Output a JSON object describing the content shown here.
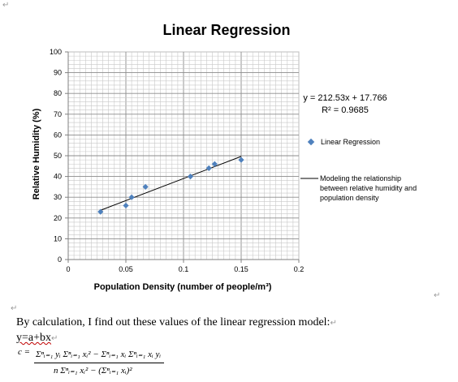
{
  "chart_data": {
    "type": "scatter",
    "title": "Linear Regression",
    "xlabel": "Population Density (number of people/m³)",
    "ylabel": "Relative Humidity (%)",
    "xlim": [
      0,
      0.2
    ],
    "ylim": [
      0,
      100
    ],
    "xticks": [
      "0",
      "0.05",
      "0.1",
      "0.15",
      "0.2"
    ],
    "yticks": [
      "0",
      "10",
      "20",
      "30",
      "40",
      "50",
      "60",
      "70",
      "80",
      "90",
      "100"
    ],
    "grid": true,
    "legend_position": "right",
    "series": [
      {
        "name": "Linear Regression",
        "type": "scatter",
        "color": "#4f81bd",
        "marker": "diamond",
        "x": [
          0.028,
          0.05,
          0.055,
          0.067,
          0.106,
          0.122,
          0.127,
          0.15
        ],
        "y": [
          23,
          26,
          30,
          35,
          40,
          44,
          46,
          48
        ]
      },
      {
        "name": "Modeling the relationship between relative humidity and population density",
        "type": "line",
        "color": "#000000",
        "x": [
          0.028,
          0.15
        ],
        "y": [
          23.72,
          49.65
        ]
      }
    ],
    "equation": "y = 212.53x + 17.766",
    "r_squared": "R² = 0.9685",
    "legend": [
      "Linear Regression",
      "Modeling the relationship",
      "between relative humidity and",
      "population density"
    ]
  },
  "document": {
    "paragraph_mark": "↵",
    "sentence": "By calculation, I find out these values of the linear regression model:",
    "model": "y=a+bx",
    "formula_var": "c =",
    "formula_numerator": "Σⁿᵢ₌₁ yᵢ Σⁿᵢ₌₁ xᵢ² − Σⁿᵢ₌₁ xᵢ Σⁿᵢ₌₁ xᵢ yᵢ",
    "formula_denominator": "n Σⁿᵢ₌₁ xᵢ² − (Σⁿᵢ₌₁ xᵢ)²"
  }
}
